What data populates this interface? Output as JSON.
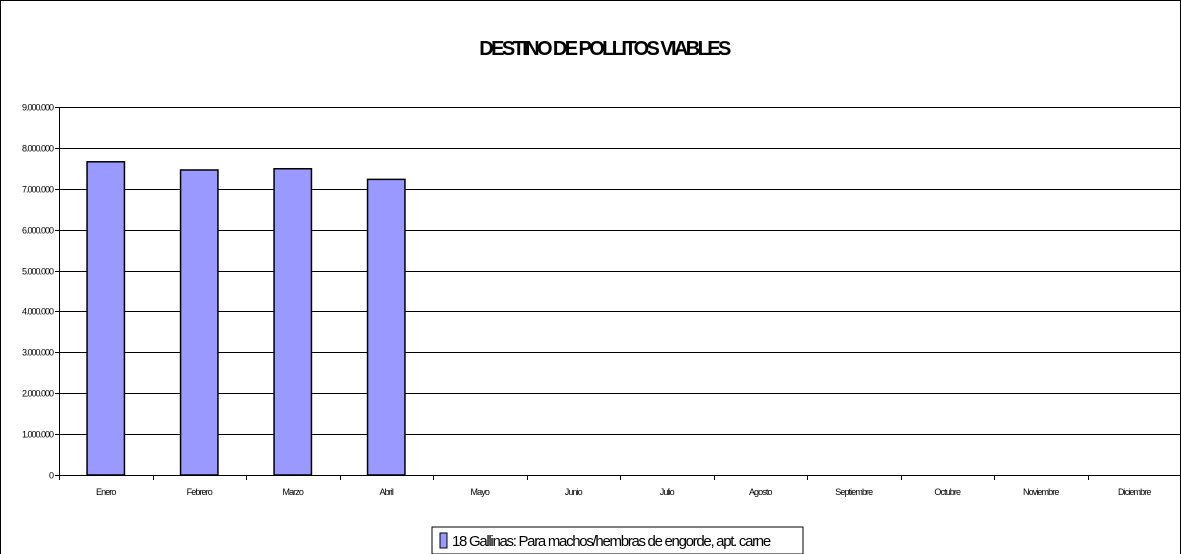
{
  "chart_data": {
    "type": "bar",
    "title": "DESTINO DE POLLITOS VIABLES",
    "xlabel": "",
    "ylabel": "",
    "categories": [
      "Enero",
      "Febrero",
      "Marzo",
      "Abril",
      "Mayo",
      "Junio",
      "Julio",
      "Agosto",
      "Septiembre",
      "Octubre",
      "Noviembre",
      "Diciembre"
    ],
    "series": [
      {
        "name": "18 Gallinas: Para machos/hembras de engorde, apt. carne",
        "values": [
          7660000,
          7460000,
          7490000,
          7230000,
          null,
          null,
          null,
          null,
          null,
          null,
          null,
          null
        ],
        "color": "#9999ff"
      }
    ],
    "ylim": [
      0,
      9000000
    ],
    "yticks": [
      0,
      1000000,
      2000000,
      3000000,
      4000000,
      5000000,
      6000000,
      7000000,
      8000000,
      9000000
    ],
    "ytick_labels": [
      "0",
      "1.000.000",
      "2.000.000",
      "3.000.000",
      "4.000.000",
      "5.000.000",
      "6.000.000",
      "7.000.000",
      "8.000.000",
      "9.000.000"
    ],
    "grid": true,
    "legend_position": "bottom-center"
  }
}
